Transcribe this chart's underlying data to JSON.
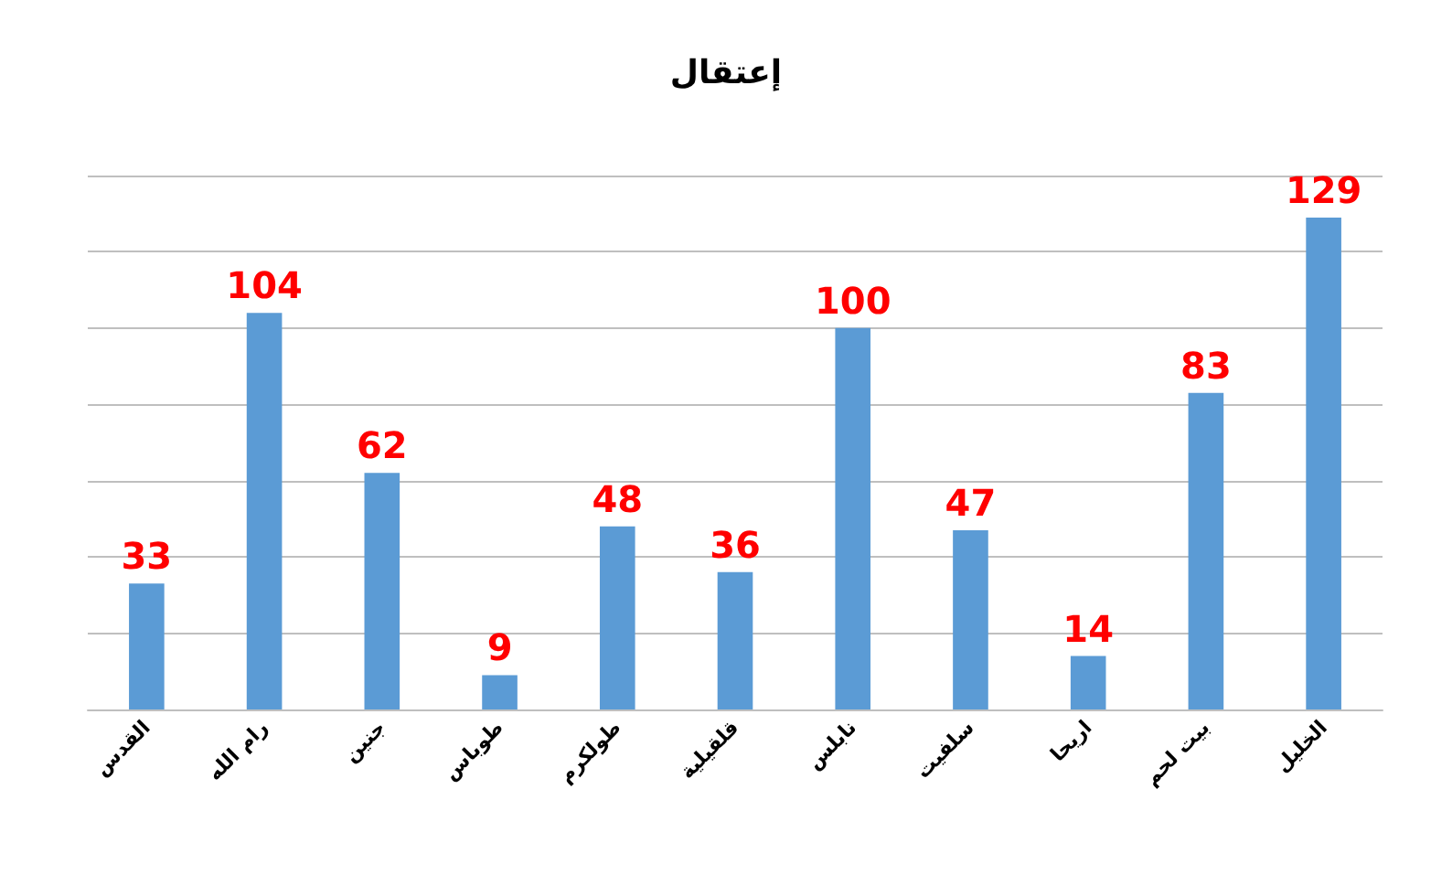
{
  "chart_data": {
    "type": "bar",
    "title": "إعتقال",
    "categories": [
      "القدس",
      "رام الله",
      "جنين",
      "طوباس",
      "طولكرم",
      "قلقيلية",
      "نابلس",
      "سلفيت",
      "اريحا",
      "بيت لحم",
      "الخليل"
    ],
    "values": [
      33,
      104,
      62,
      9,
      48,
      36,
      100,
      47,
      14,
      83,
      129
    ],
    "color": "#5b9bd5",
    "ylim": [
      0,
      140
    ],
    "yticks": [
      {
        "value": 0,
        "label": null
      },
      {
        "value": 20,
        "label": null
      },
      {
        "value": 40,
        "label": null
      },
      {
        "value": 60,
        "label": null
      },
      {
        "value": 80,
        "label": null
      },
      {
        "value": 100,
        "label": null
      },
      {
        "value": 120,
        "label": null
      },
      {
        "value": 140,
        "label": null
      }
    ],
    "grid": "y",
    "tick_labels": "x",
    "data_labels": true
  }
}
